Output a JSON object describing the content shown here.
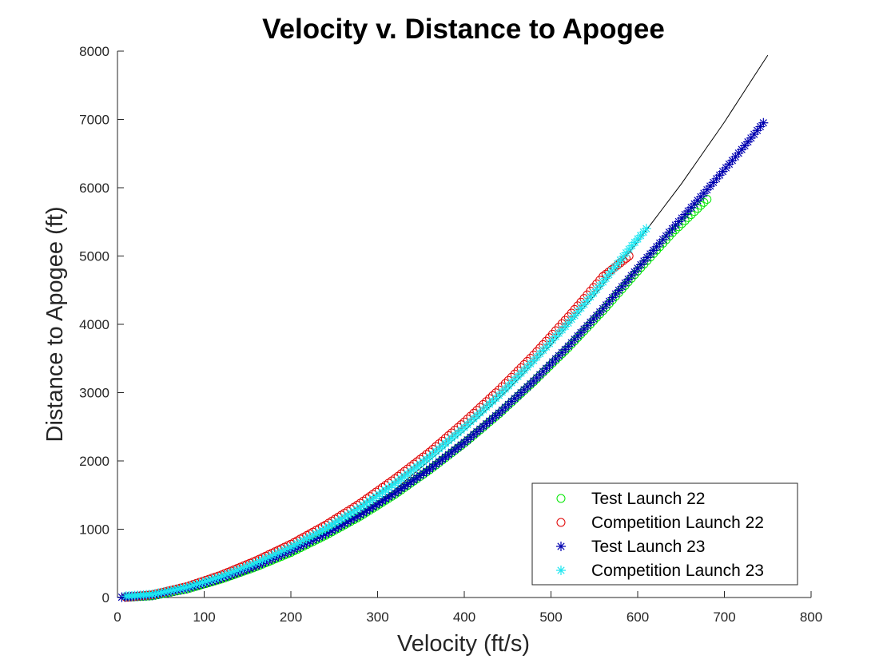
{
  "chart_data": {
    "type": "scatter",
    "title": "Velocity v. Distance to Apogee",
    "xlabel": "Velocity (ft/s)",
    "ylabel": "Distance to Apogee (ft)",
    "xlim": [
      0,
      800
    ],
    "ylim": [
      0,
      8000
    ],
    "xticks": [
      "0",
      "100",
      "200",
      "300",
      "400",
      "500",
      "600",
      "700",
      "800"
    ],
    "yticks": [
      "0",
      "1000",
      "2000",
      "3000",
      "4000",
      "5000",
      "6000",
      "7000",
      "8000"
    ],
    "grid": false,
    "legend_position": "bottom-right",
    "series": [
      {
        "name": "Test Launch 22",
        "marker": "circle",
        "color": "#00e600",
        "x": [
          10,
          40,
          80,
          120,
          160,
          200,
          240,
          280,
          320,
          360,
          400,
          440,
          480,
          520,
          560,
          600,
          640,
          680
        ],
        "y": [
          5,
          25,
          125,
          270,
          450,
          660,
          910,
          1190,
          1510,
          1870,
          2260,
          2690,
          3160,
          3660,
          4200,
          4780,
          5340,
          5830
        ]
      },
      {
        "name": "Competition Launch 22",
        "marker": "circle",
        "color": "#e00000",
        "x": [
          10,
          40,
          80,
          120,
          160,
          200,
          240,
          280,
          320,
          360,
          400,
          440,
          480,
          520,
          560,
          590
        ],
        "y": [
          5,
          40,
          160,
          330,
          540,
          780,
          1060,
          1380,
          1740,
          2130,
          2570,
          3040,
          3550,
          4110,
          4700,
          5000
        ]
      },
      {
        "name": "Test Launch 23",
        "marker": "star",
        "color": "#0000b0",
        "x": [
          5,
          40,
          80,
          120,
          160,
          200,
          240,
          280,
          320,
          360,
          400,
          440,
          480,
          520,
          560,
          600,
          640,
          680,
          720,
          745
        ],
        "y": [
          5,
          30,
          130,
          280,
          460,
          680,
          930,
          1210,
          1530,
          1880,
          2270,
          2700,
          3170,
          3680,
          4230,
          4820,
          5400,
          5970,
          6560,
          6950
        ]
      },
      {
        "name": "Competition Launch 23",
        "marker": "star",
        "color": "#1ee6f0",
        "x": [
          10,
          40,
          80,
          120,
          160,
          200,
          240,
          280,
          320,
          360,
          400,
          440,
          480,
          520,
          560,
          590,
          610
        ],
        "y": [
          20,
          45,
          150,
          310,
          510,
          740,
          1010,
          1320,
          1670,
          2060,
          2490,
          2960,
          3470,
          4020,
          4620,
          5100,
          5400
        ]
      },
      {
        "name": "",
        "marker": "none",
        "style": "line",
        "color": "#000000",
        "x": [
          0,
          50,
          100,
          150,
          200,
          250,
          300,
          350,
          400,
          450,
          500,
          550,
          600,
          650,
          700,
          750
        ],
        "y": [
          0,
          55,
          140,
          360,
          710,
          1010,
          1370,
          1900,
          2440,
          3040,
          3700,
          4420,
          5210,
          6050,
          6960,
          7940
        ]
      }
    ]
  }
}
